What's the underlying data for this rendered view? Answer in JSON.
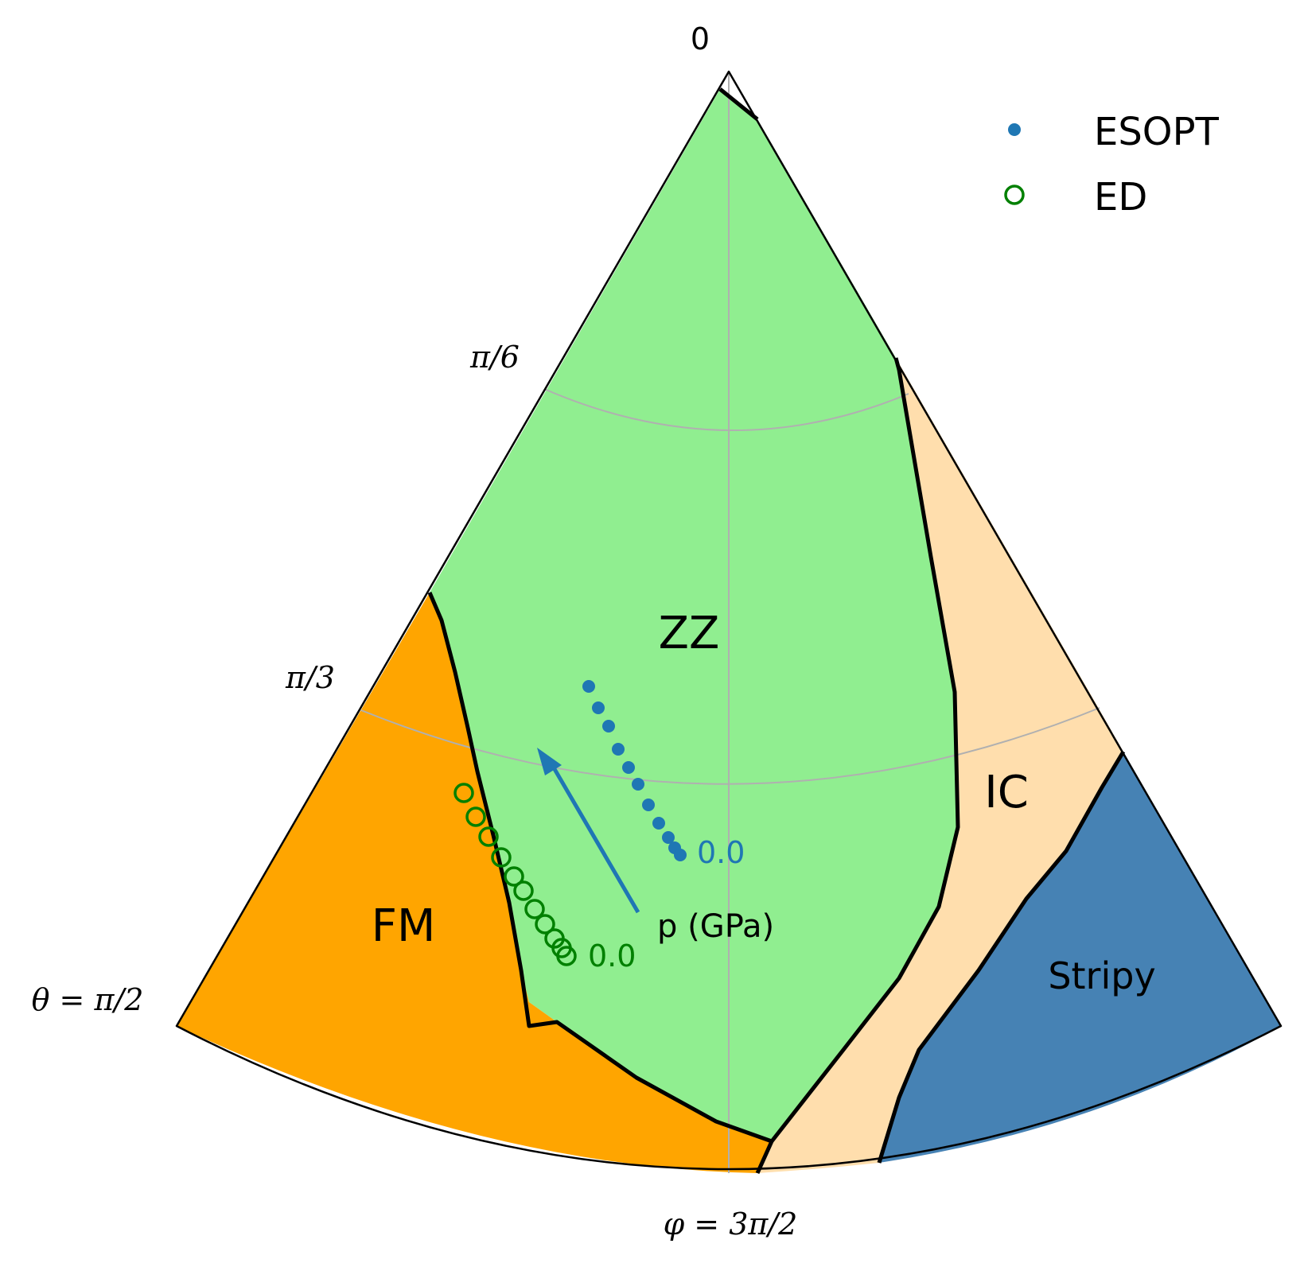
{
  "chart_data": {
    "type": "scatter",
    "title": "",
    "theta_label": "θ = π/2",
    "phi_label": "φ = 3π/2",
    "theta_ticks": [
      "0",
      "π/6",
      "π/3"
    ],
    "regions": [
      {
        "name": "ZZ",
        "color": "#90ee90"
      },
      {
        "name": "FM",
        "color": "#ffa500"
      },
      {
        "name": "IC",
        "color": "#ffdead"
      },
      {
        "name": "Stripy",
        "color": "#4682b4"
      }
    ],
    "series": [
      {
        "name": "ESOPT",
        "marker": "filled-circle",
        "color": "#1f77b4",
        "start_label": "0.0"
      },
      {
        "name": "ED",
        "marker": "open-circle",
        "color": "#008000",
        "start_label": "0.0"
      }
    ],
    "arrow_label": "p (GPa)",
    "legend_position": "top-right",
    "grid": true
  }
}
